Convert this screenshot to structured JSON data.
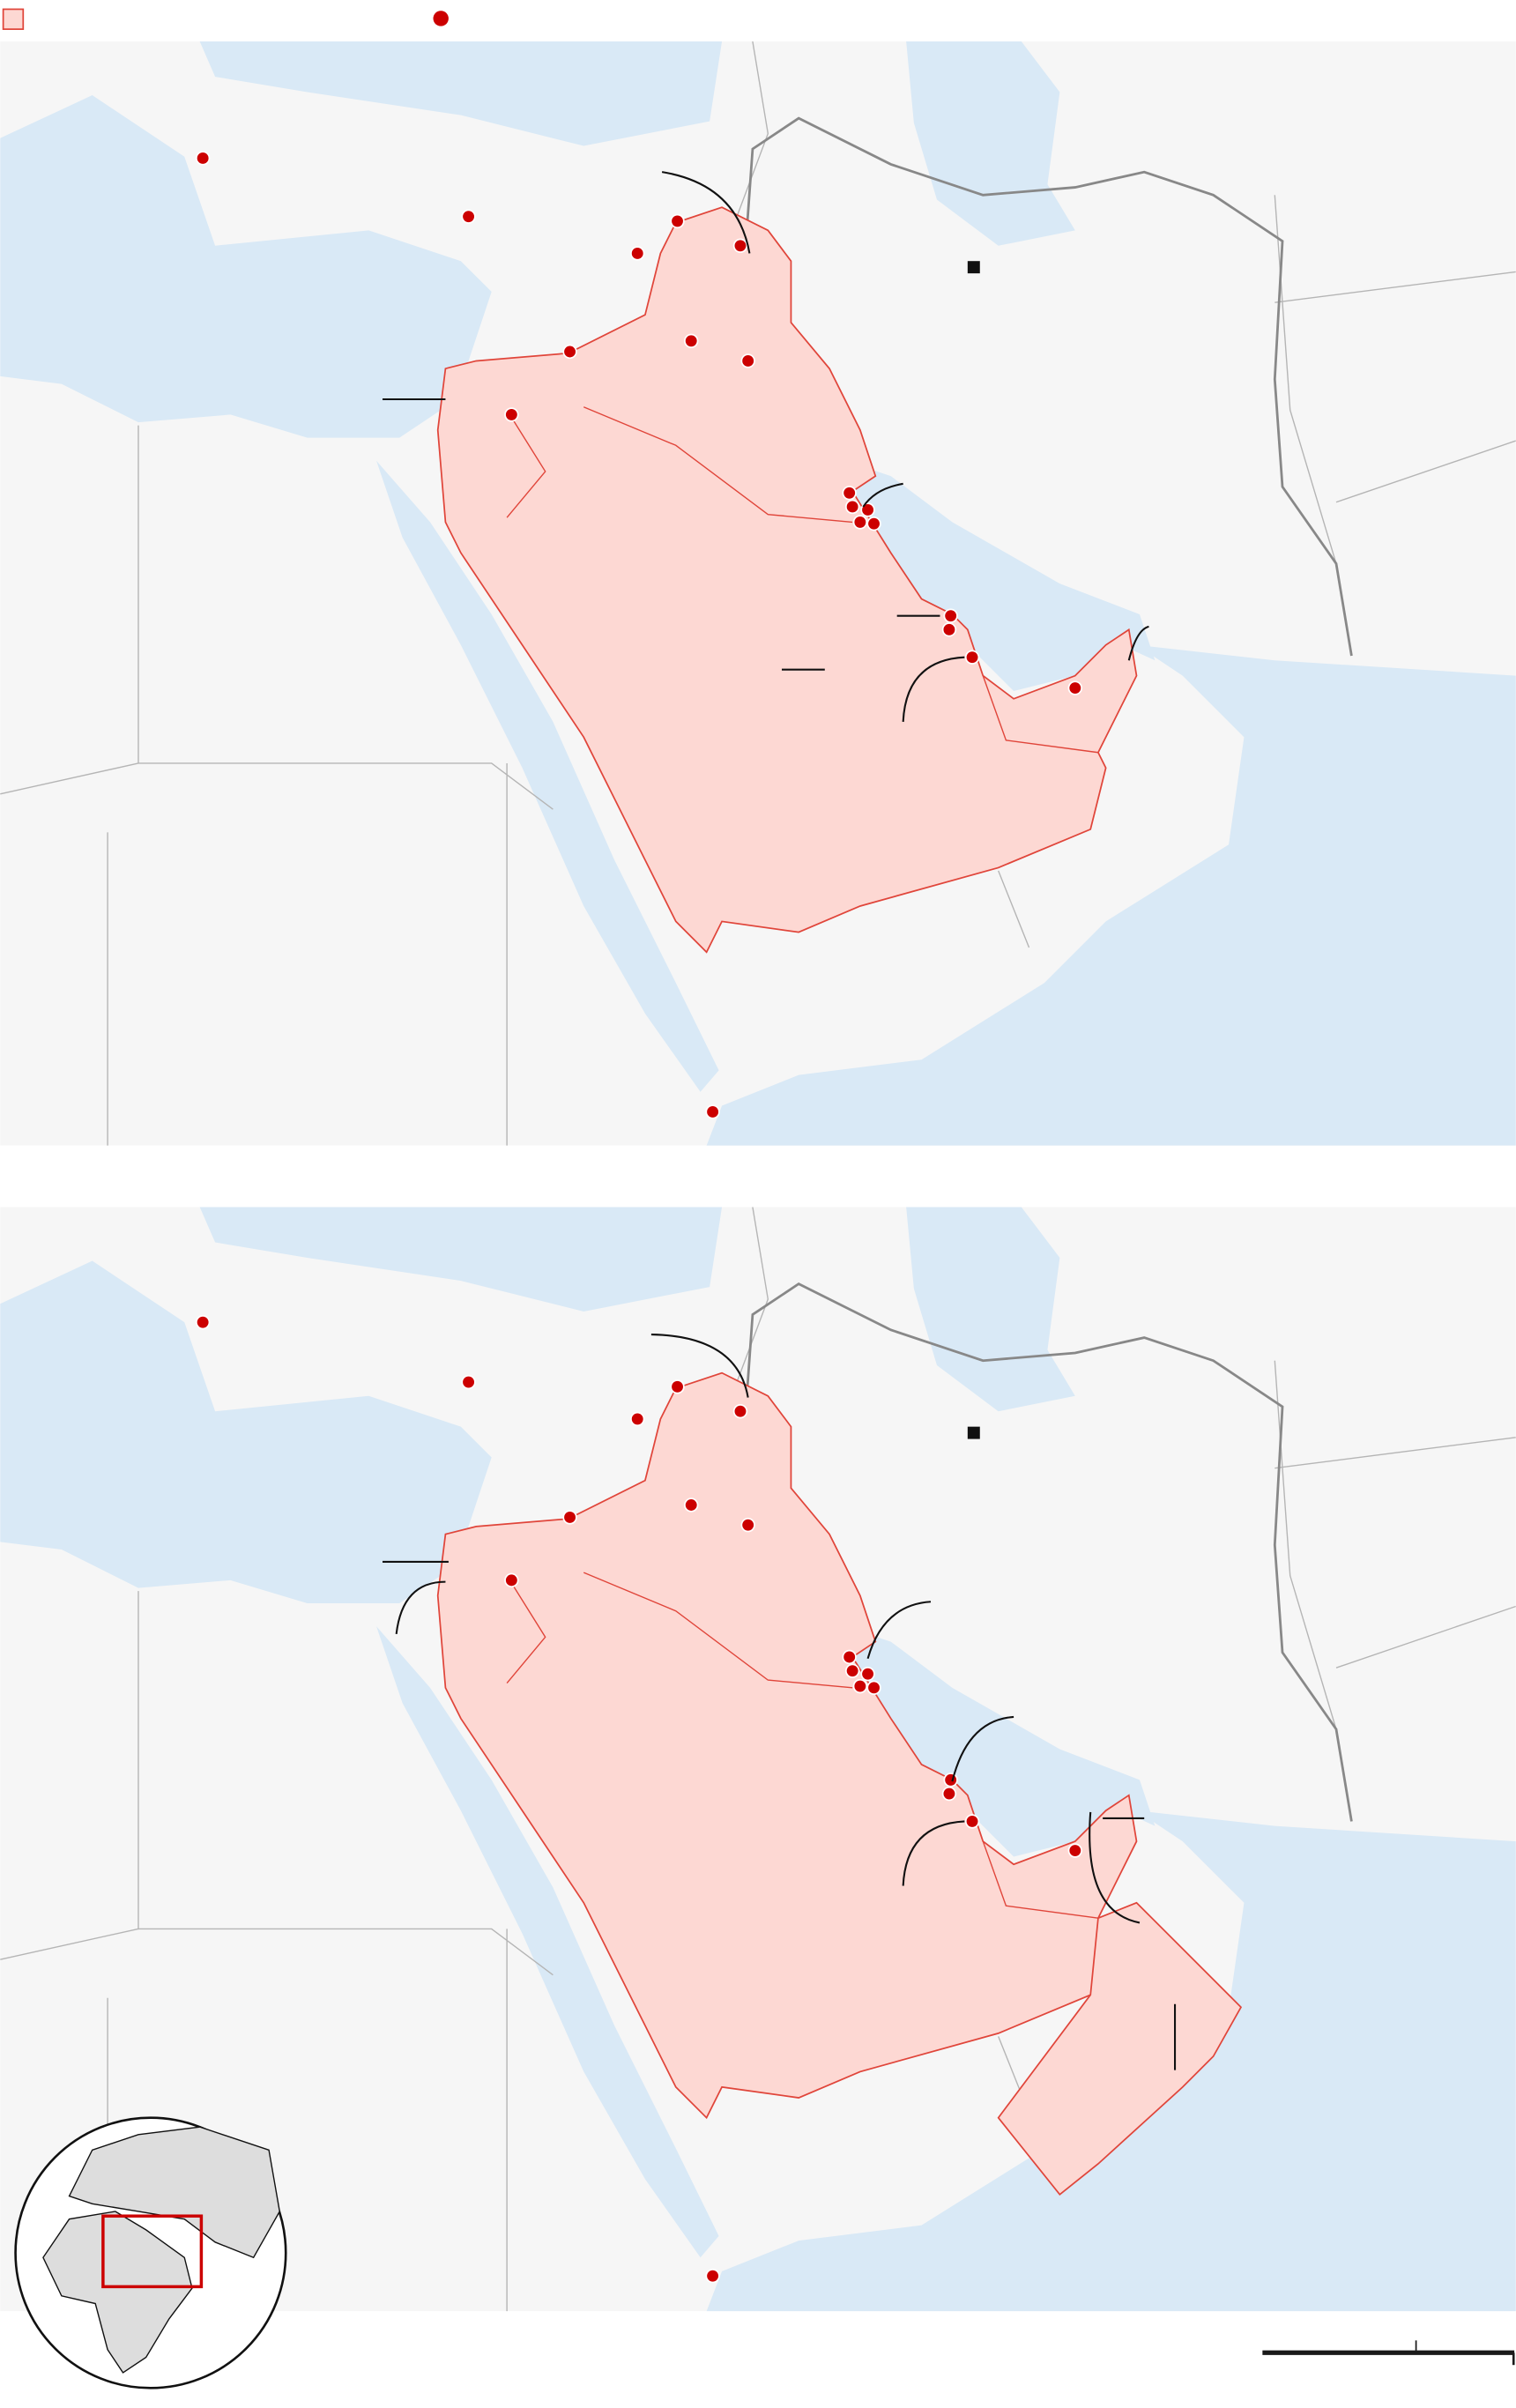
{
  "legend": {
    "items": [
      {
        "icon": "shaded-region-swatch",
        "label": ""
      },
      {
        "icon": "red-dot-marker",
        "label": ""
      }
    ]
  },
  "maps": [
    {
      "name": "map-panel-top",
      "oman_highlighted": false
    },
    {
      "name": "map-panel-bottom",
      "oman_highlighted": true
    }
  ],
  "colors": {
    "land": "#f6f6f6",
    "water": "#d9e9f6",
    "region_fill": "#fdd8d3",
    "region_stroke": "#e0453a",
    "marker": "#cc0000",
    "border": "#9a9a9a",
    "leader_line": "#111111",
    "inset_box": "#cc0000"
  },
  "inset": {
    "icon": "globe-locator"
  },
  "scale_bar": {
    "icon": "scale-bar"
  }
}
